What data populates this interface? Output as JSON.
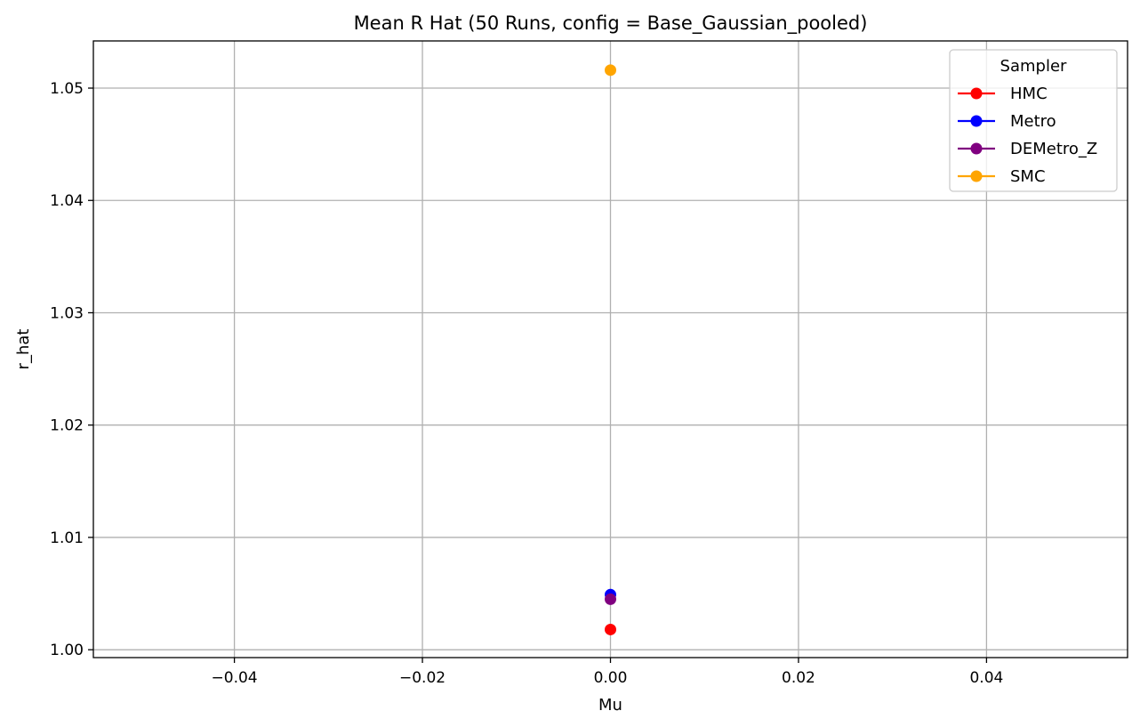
{
  "chart_data": {
    "type": "scatter",
    "title": "Mean R Hat (50 Runs, config = Base_Gaussian_pooled)",
    "xlabel": "Mu",
    "ylabel": "r_hat",
    "xlim": [
      -0.055,
      0.055
    ],
    "ylim": [
      0.9993,
      1.0542
    ],
    "x_ticks": [
      -0.04,
      -0.02,
      0.0,
      0.02,
      0.04
    ],
    "x_tick_labels": [
      "−0.04",
      "−0.02",
      "0.00",
      "0.02",
      "0.04"
    ],
    "y_ticks": [
      1.0,
      1.01,
      1.02,
      1.03,
      1.04,
      1.05
    ],
    "y_tick_labels": [
      "1.00",
      "1.01",
      "1.02",
      "1.03",
      "1.04",
      "1.05"
    ],
    "grid": true,
    "legend": {
      "title": "Sampler",
      "placement": "top-right"
    },
    "series": [
      {
        "name": "HMC",
        "color": "#ff0000",
        "x": [
          0.0
        ],
        "y": [
          1.0018
        ]
      },
      {
        "name": "Metro",
        "color": "#0000ff",
        "x": [
          0.0
        ],
        "y": [
          1.0049
        ]
      },
      {
        "name": "DEMetro_Z",
        "color": "#800080",
        "x": [
          0.0
        ],
        "y": [
          1.0045
        ]
      },
      {
        "name": "SMC",
        "color": "#ffa500",
        "x": [
          0.0
        ],
        "y": [
          1.0516
        ]
      }
    ]
  }
}
